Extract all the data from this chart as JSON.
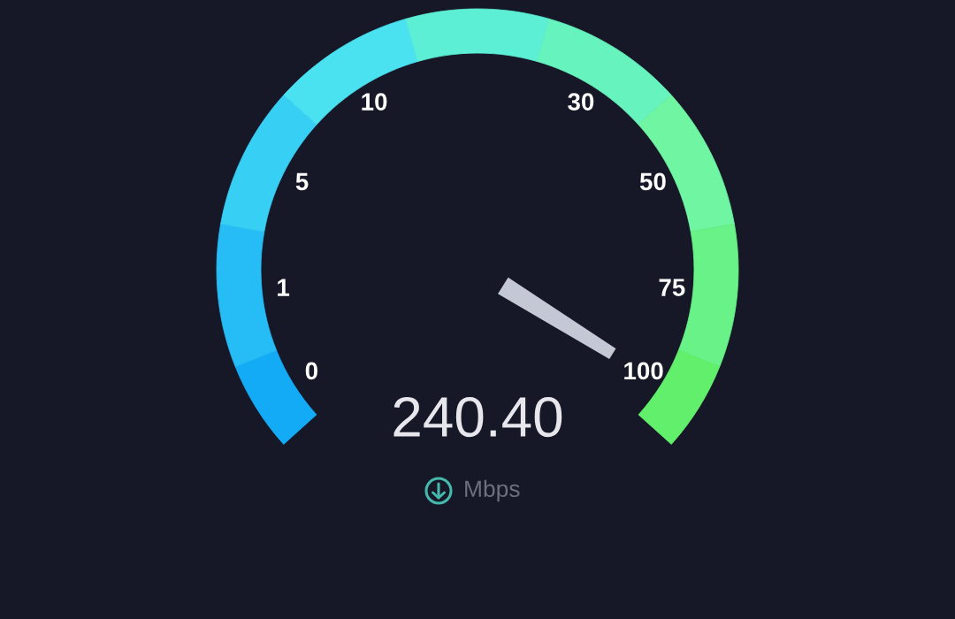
{
  "chart_data": {
    "type": "donut",
    "categories": [
      "0",
      "1",
      "5",
      "10",
      null,
      "30",
      "50",
      "75",
      "100"
    ],
    "values": [
      7.65,
      12.1,
      12.1,
      12.1,
      12.1,
      12.1,
      12.1,
      12.1,
      7.65
    ],
    "colors": [
      "#14abf6",
      "#26bdf6",
      "#38cff5",
      "#4ae1f0",
      "#5cefd6",
      "#66f3bd",
      "#70f5a2",
      "#69f288",
      "#62f06c"
    ],
    "needle": "100",
    "annotations": [
      "240.40",
      "Mbps"
    ]
  }
}
